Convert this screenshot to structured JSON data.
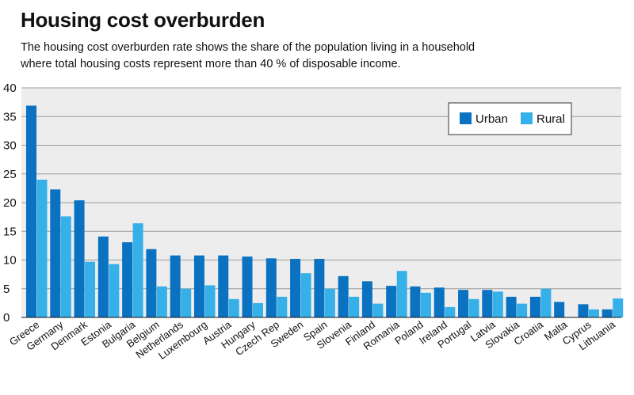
{
  "chart_data": {
    "type": "bar",
    "title": "Housing cost overburden",
    "subtitle_lines": [
      "The housing cost overburden rate shows the share of the population living in a household",
      "where total housing costs represent more than 40 % of disposable income."
    ],
    "categories": [
      "Greece",
      "Germany",
      "Denmark",
      "Estonia",
      "Bulgaria",
      "Belgium",
      "Netherlands",
      "Luxembourg",
      "Austria",
      "Hungary",
      "Czech Rep",
      "Sweden",
      "Spain",
      "Slovenia",
      "Finland",
      "Romania",
      "Poland",
      "Ireland",
      "Portugal",
      "Latvia",
      "Slovakia",
      "Croatia",
      "Malta",
      "Cyprus",
      "Lithuania"
    ],
    "series": [
      {
        "name": "Urban",
        "color": "#0a72c0",
        "values": [
          36.9,
          22.3,
          20.4,
          14.1,
          13.1,
          11.9,
          10.8,
          10.8,
          10.8,
          10.6,
          10.3,
          10.2,
          10.2,
          7.2,
          6.3,
          5.5,
          5.4,
          5.2,
          4.8,
          4.8,
          3.6,
          3.6,
          2.7,
          2.3,
          1.4
        ]
      },
      {
        "name": "Rural",
        "color": "#36b0e8",
        "values": [
          24.0,
          17.6,
          9.7,
          9.3,
          16.4,
          5.4,
          5.0,
          5.6,
          3.2,
          2.5,
          3.6,
          7.7,
          5.0,
          3.6,
          2.4,
          8.1,
          4.3,
          1.8,
          3.2,
          4.5,
          2.4,
          5.0,
          null,
          1.4,
          3.3
        ]
      }
    ],
    "y_ticks": [
      "0",
      "5",
      "10",
      "15",
      "20",
      "25",
      "30",
      "35",
      "40"
    ],
    "ylim": [
      0,
      40
    ],
    "grid": true,
    "legend_position": "top-right"
  },
  "colors": {
    "background": "#ffffff",
    "plot_background": "#ededed",
    "gridline": "#9a9a9a"
  }
}
